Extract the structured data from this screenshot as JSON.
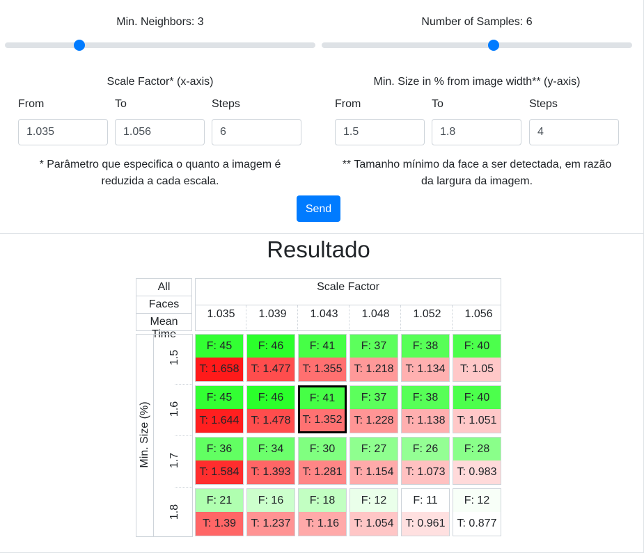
{
  "sliders": {
    "neighbors_label": "Min. Neighbors: 3",
    "samples_label": "Number of Samples: 6",
    "neighbors_value_fraction": 0.23,
    "samples_value_fraction": 0.555
  },
  "scale_factor": {
    "title": "Scale Factor* (x-axis)",
    "from_label": "From",
    "to_label": "To",
    "steps_label": "Steps",
    "from_value": "1.035",
    "to_value": "1.056",
    "steps_value": "6",
    "note_line1": "* Parâmetro que especifica o quanto a imagem é",
    "note_line2": "reduzida a cada escala."
  },
  "min_size": {
    "title": "Min. Size in % from image width** (y-axis)",
    "from_label": "From",
    "to_label": "To",
    "steps_label": "Steps",
    "from_value": "1.5",
    "to_value": "1.8",
    "steps_value": "4",
    "note_line1": "** Tamanho mínimo da face a ser detectada, em razão",
    "note_line2": "da largura da imagem."
  },
  "send_label": "Send",
  "result_title": "Resultado",
  "legend": {
    "all": "All",
    "faces": "Faces",
    "mean_time": "Mean Time"
  },
  "x_axis_title": "Scale Factor",
  "y_axis_title": "Min. Size (%)",
  "x_ticks": [
    "1.035",
    "1.039",
    "1.043",
    "1.048",
    "1.052",
    "1.056"
  ],
  "y_ticks": [
    "1.5",
    "1.6",
    "1.7",
    "1.8"
  ],
  "colors": {
    "primary": "#007bff",
    "border": "#ced4da"
  },
  "grid": {
    "rows": [
      [
        {
          "f": "F: 45",
          "t": "T: 1.658",
          "fc": "#33ff33",
          "tc": "#ff1a1a"
        },
        {
          "f": "F: 46",
          "t": "T: 1.477",
          "fc": "#2bff2b",
          "tc": "#ff4d4d"
        },
        {
          "f": "F: 41",
          "t": "T: 1.355",
          "fc": "#46ff46",
          "tc": "#ff7070"
        },
        {
          "f": "F: 37",
          "t": "T: 1.218",
          "fc": "#5cff5c",
          "tc": "#ff9999"
        },
        {
          "f": "F: 38",
          "t": "T: 1.134",
          "fc": "#57ff57",
          "tc": "#ffb0b0"
        },
        {
          "f": "F: 40",
          "t": "T: 1.05",
          "fc": "#4cff4c",
          "tc": "#ffc8c8"
        }
      ],
      [
        {
          "f": "F: 45",
          "t": "T: 1.644",
          "fc": "#33ff33",
          "tc": "#ff1f1f"
        },
        {
          "f": "F: 46",
          "t": "T: 1.478",
          "fc": "#2bff2b",
          "tc": "#ff4d4d"
        },
        {
          "f": "F: 41",
          "t": "T: 1.352",
          "fc": "#46ff46",
          "tc": "#ff7272",
          "selected": true
        },
        {
          "f": "F: 37",
          "t": "T: 1.228",
          "fc": "#5cff5c",
          "tc": "#ff9595"
        },
        {
          "f": "F: 38",
          "t": "T: 1.138",
          "fc": "#57ff57",
          "tc": "#ffafaf"
        },
        {
          "f": "F: 40",
          "t": "T: 1.051",
          "fc": "#4cff4c",
          "tc": "#ffc8c8"
        }
      ],
      [
        {
          "f": "F: 36",
          "t": "T: 1.584",
          "fc": "#62ff62",
          "tc": "#ff2e2e"
        },
        {
          "f": "F: 34",
          "t": "T: 1.393",
          "fc": "#6cff6c",
          "tc": "#ff6666"
        },
        {
          "f": "F: 30",
          "t": "T: 1.281",
          "fc": "#80ff80",
          "tc": "#ff8686"
        },
        {
          "f": "F: 27",
          "t": "T: 1.154",
          "fc": "#8fff8f",
          "tc": "#ffaaaa"
        },
        {
          "f": "F: 26",
          "t": "T: 1.073",
          "fc": "#94ff94",
          "tc": "#ffc1c1"
        },
        {
          "f": "F: 28",
          "t": "T: 0.983",
          "fc": "#8aff8a",
          "tc": "#ffdada"
        }
      ],
      [
        {
          "f": "F: 21",
          "t": "T: 1.39",
          "fc": "#b0ffb0",
          "tc": "#ff6666"
        },
        {
          "f": "F: 16",
          "t": "T: 1.237",
          "fc": "#ccffcc",
          "tc": "#ff9393"
        },
        {
          "f": "F: 18",
          "t": "T: 1.16",
          "fc": "#c2ffc2",
          "tc": "#ffa9a9"
        },
        {
          "f": "F: 12",
          "t": "T: 1.054",
          "fc": "#eaffea",
          "tc": "#ffc6c6"
        },
        {
          "f": "F: 11",
          "t": "T: 0.961",
          "fc": "#ffffff",
          "tc": "#ffe0e0"
        },
        {
          "f": "F: 12",
          "t": "T: 0.877",
          "fc": "#f8fff8",
          "tc": "#ffffff"
        }
      ]
    ]
  }
}
